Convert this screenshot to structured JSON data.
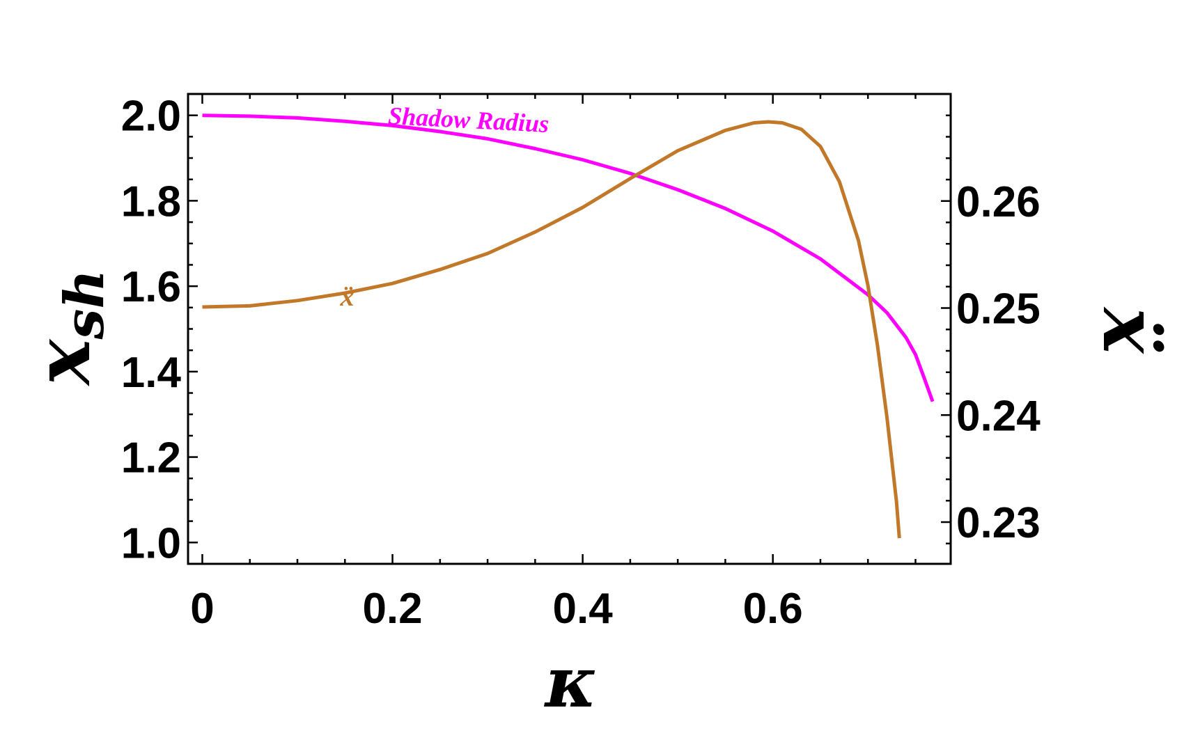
{
  "chart_data": {
    "type": "line",
    "xlabel": "κ",
    "ylabel_left": "x",
    "ylabel_left_subscript": "sh",
    "ylabel_right": "ẍ",
    "xlim": [
      -0.015,
      0.787
    ],
    "ylim_left": [
      0.95,
      2.05
    ],
    "ylim_right": [
      0.2261,
      0.27
    ],
    "x_ticks": [
      0,
      0.2,
      0.4,
      0.6
    ],
    "x_tick_labels": [
      "0",
      "0.2",
      "0.4",
      "0.6"
    ],
    "y_left_ticks": [
      1.0,
      1.2,
      1.4,
      1.6,
      1.8,
      2.0
    ],
    "y_left_tick_labels": [
      "1.0",
      "1.2",
      "1.4",
      "1.6",
      "1.8",
      "2.0"
    ],
    "y_right_ticks": [
      0.23,
      0.24,
      0.25,
      0.26
    ],
    "y_right_tick_labels": [
      "0.23",
      "0.24",
      "0.25",
      "0.26"
    ],
    "grid": false,
    "series": [
      {
        "name": "Shadow Radius",
        "axis": "left",
        "color": "#ff00ff",
        "x": [
          0.0,
          0.05,
          0.1,
          0.15,
          0.2,
          0.25,
          0.3,
          0.35,
          0.4,
          0.45,
          0.5,
          0.55,
          0.6,
          0.65,
          0.7,
          0.72,
          0.74,
          0.75,
          0.76,
          0.768
        ],
        "y": [
          2.0,
          1.998,
          1.994,
          1.986,
          1.976,
          1.962,
          1.945,
          1.922,
          1.896,
          1.864,
          1.826,
          1.782,
          1.729,
          1.664,
          1.58,
          1.538,
          1.48,
          1.44,
          1.38,
          1.33
        ]
      },
      {
        "name": "ẍ",
        "axis": "right",
        "color": "#c27829",
        "x": [
          0.0,
          0.05,
          0.1,
          0.15,
          0.2,
          0.25,
          0.3,
          0.35,
          0.4,
          0.45,
          0.5,
          0.55,
          0.58,
          0.595,
          0.61,
          0.63,
          0.65,
          0.67,
          0.69,
          0.7,
          0.71,
          0.72,
          0.73,
          0.733
        ],
        "y": [
          0.2501,
          0.2502,
          0.2507,
          0.2514,
          0.2523,
          0.2536,
          0.2551,
          0.2571,
          0.2594,
          0.2621,
          0.2647,
          0.2666,
          0.2673,
          0.2674,
          0.2673,
          0.2667,
          0.2651,
          0.2618,
          0.2563,
          0.2521,
          0.2465,
          0.2398,
          0.2319,
          0.2285
        ]
      }
    ],
    "annotations": [
      {
        "text": "Shadow Radius",
        "x": 0.195,
        "y": 1.98,
        "axis": "left",
        "color": "#ff00ff"
      },
      {
        "text": "ẍ",
        "x": 0.145,
        "y": 1.555,
        "axis": "left",
        "color": "#c27829"
      }
    ]
  }
}
